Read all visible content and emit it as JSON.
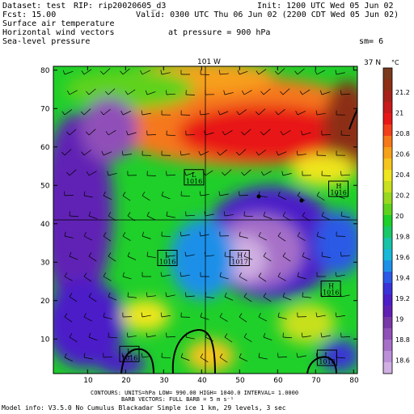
{
  "header": {
    "dataset": "Dataset: test",
    "rip": "RIP: rip20020605_d3",
    "init": "Init: 1200 UTC Wed 05 Jun 02",
    "fcst": "Fcst:    15.00",
    "valid": "Valid: 0300 UTC Thu 06 Jun 02 (2200 CDT Wed 05 Jun 02)",
    "field1": "Surface air temperature",
    "field2": "Horizontal wind vectors",
    "pressure": "at pressure =  900 hPa",
    "field3": "Sea-level pressure",
    "sm": "sm= 6"
  },
  "map": {
    "meridian_label": "101 W",
    "parallel_label": "37 N",
    "x_ticks": [
      "10",
      "20",
      "30",
      "40",
      "50",
      "60",
      "70",
      "80"
    ],
    "y_ticks": [
      "10",
      "20",
      "30",
      "40",
      "50",
      "60",
      "70",
      "80"
    ],
    "pressure_centers": [
      {
        "type": "L",
        "value": "1016",
        "gx": 38,
        "gy": 52
      },
      {
        "type": "H",
        "value": "1016",
        "gx": 76,
        "gy": 49
      },
      {
        "type": "L",
        "value": "1016",
        "gx": 31,
        "gy": 31
      },
      {
        "type": "H",
        "value": "1017",
        "gx": 50,
        "gy": 31
      },
      {
        "type": "H",
        "value": "1016",
        "gx": 74,
        "gy": 23
      },
      {
        "type": "L",
        "value": "1016",
        "gx": 21,
        "gy": 6
      },
      {
        "type": "L",
        "value": "1018",
        "gx": 73,
        "gy": 5
      }
    ]
  },
  "colorbar": {
    "unit": "°C",
    "labels": [
      "21.2",
      "21",
      "20.8",
      "20.6",
      "20.4",
      "20.2",
      "20",
      "19.8",
      "19.6",
      "19.4",
      "19.2",
      "19",
      "18.8",
      "18.6"
    ],
    "colors": [
      "#7a3a1e",
      "#8c2f14",
      "#a8221a",
      "#c81a1a",
      "#e81818",
      "#f2401a",
      "#f5781a",
      "#f7a01a",
      "#f5c51e",
      "#eee61e",
      "#c8e01e",
      "#98d81e",
      "#5fd21e",
      "#1fcf2a",
      "#18c868",
      "#18c3a8",
      "#18b8d8",
      "#1e90e8",
      "#2a5ae6",
      "#3a32d8",
      "#4c1ec8",
      "#6020b4",
      "#7838a8",
      "#9050b8",
      "#a670c8",
      "#bb90d8",
      "#d0b0e2"
    ]
  },
  "footer": {
    "contours": "CONTOURS: UNITS=hPa   LOW=  990.00     HIGH= 1040.0    INTERVAL=   1.0000",
    "barbs": "BARB VECTORS:  FULL BARB = 5 m s⁻¹",
    "model": "Model info: V3.5.0 No Cumulus Blackadar  Simple ice    1 km,  29 levels,    3 sec"
  }
}
